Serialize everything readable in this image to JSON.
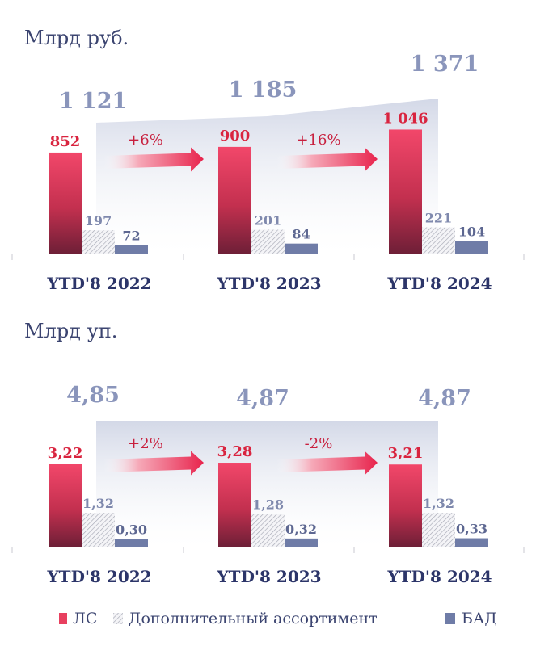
{
  "colors": {
    "ls": "#e8405f",
    "ls_dark": "#6e1f37",
    "ls_label": "#d9243f",
    "bad": "#6f7ca7",
    "bad_label": "#5d6791",
    "dop_label": "#7f89ad",
    "total_label": "#8a95bb",
    "growth_label": "#ffffff",
    "axis_text": "#2c3569",
    "unit_text": "#3b4470"
  },
  "legend": {
    "ls": "ЛС",
    "dop": "Дополнительный ассортимент",
    "bad": "БАД"
  },
  "chart_data": [
    {
      "type": "bar",
      "title": "Млрд руб.",
      "categories": [
        "YTD'8 2022",
        "YTD'8 2023",
        "YTD'8 2024"
      ],
      "series": [
        {
          "name": "ЛС",
          "values": [
            852,
            900,
            1046
          ],
          "labels": [
            "852",
            "900",
            "1 046"
          ]
        },
        {
          "name": "Дополнительный ассортимент",
          "values": [
            197,
            201,
            221
          ],
          "labels": [
            "197",
            "201",
            "221"
          ]
        },
        {
          "name": "БАД",
          "values": [
            72,
            84,
            104
          ],
          "labels": [
            "72",
            "84",
            "104"
          ]
        }
      ],
      "totals": {
        "values": [
          1121,
          1185,
          1371
        ],
        "labels": [
          "1 121",
          "1 185",
          "1 371"
        ]
      },
      "growth": [
        "+6%",
        "+16%"
      ],
      "ylim": [
        0,
        1400
      ]
    },
    {
      "type": "bar",
      "title": "Млрд уп.",
      "categories": [
        "YTD'8 2022",
        "YTD'8 2023",
        "YTD'8 2024"
      ],
      "series": [
        {
          "name": "ЛС",
          "values": [
            3.22,
            3.28,
            3.21
          ],
          "labels": [
            "3,22",
            "3,28",
            "3,21"
          ]
        },
        {
          "name": "Дополнительный ассортимент",
          "values": [
            1.32,
            1.28,
            1.32
          ],
          "labels": [
            "1,32",
            "1,28",
            "1,32"
          ]
        },
        {
          "name": "БАД",
          "values": [
            0.3,
            0.32,
            0.33
          ],
          "labels": [
            "0,30",
            "0,32",
            "0,33"
          ]
        }
      ],
      "totals": {
        "values": [
          4.85,
          4.87,
          4.87
        ],
        "labels": [
          "4,85",
          "4,87",
          "4,87"
        ]
      },
      "growth": [
        "+2%",
        "-2%"
      ],
      "ylim": [
        0,
        5.5
      ]
    }
  ]
}
